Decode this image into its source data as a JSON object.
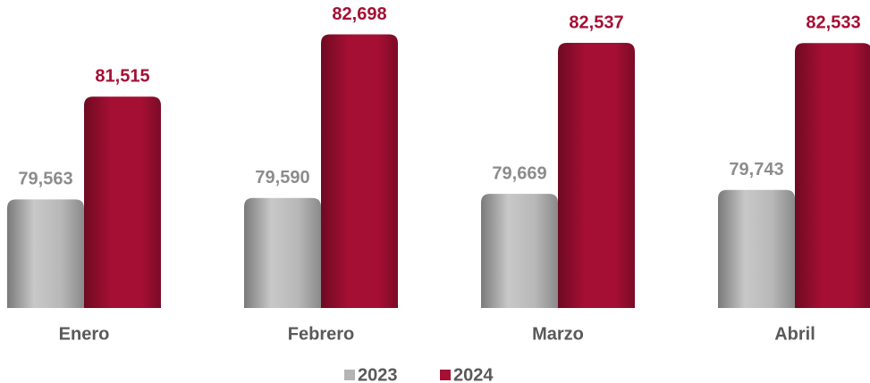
{
  "chart_data": {
    "type": "bar",
    "categories": [
      "Enero",
      "Febrero",
      "Marzo",
      "Abril"
    ],
    "series": [
      {
        "name": "2023",
        "color": "#b4b4b4",
        "values": [
          79563,
          79590,
          79669,
          79743
        ],
        "value_labels": [
          "79,563",
          "79,590",
          "79,669",
          "79,743"
        ]
      },
      {
        "name": "2024",
        "color": "#a50f34",
        "values": [
          81515,
          82698,
          82537,
          82533
        ],
        "value_labels": [
          "81,515",
          "82,698",
          "82,537",
          "82,533"
        ]
      }
    ],
    "ylim": [
      77500,
      83300
    ]
  }
}
